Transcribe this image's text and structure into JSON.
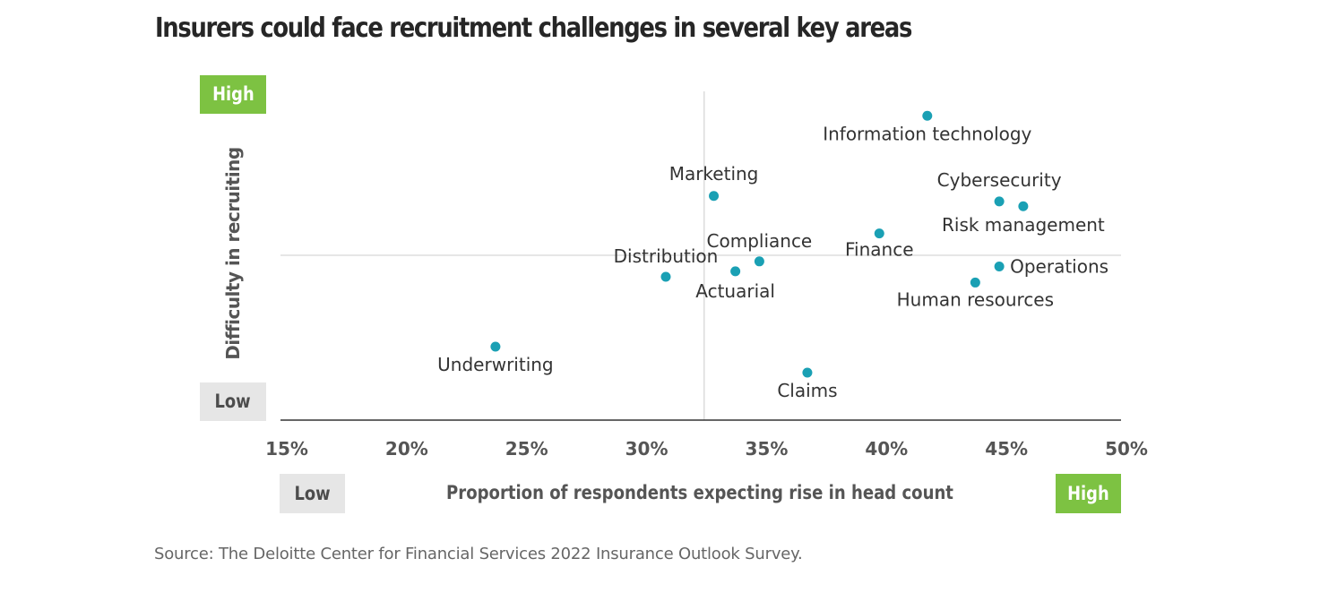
{
  "chart_data": {
    "type": "scatter",
    "title": "Insurers could face recruitment challenges in several key areas",
    "xlabel": "Proportion of respondents expecting rise in head count",
    "ylabel": "Difficulty in recruiting",
    "x_low_label": "Low",
    "x_high_label": "High",
    "y_low_label": "Low",
    "y_high_label": "High",
    "xlim": [
      15,
      50
    ],
    "ylim": [
      0,
      100
    ],
    "x_ticks": [
      15,
      20,
      25,
      30,
      35,
      40,
      45,
      50
    ],
    "x_tick_labels": [
      "15%",
      "20%",
      "25%",
      "30%",
      "35%",
      "40%",
      "45%",
      "50%"
    ],
    "x_divider": 32.4,
    "y_divider": 50,
    "grid": false,
    "point_color": "#1aa0b4",
    "points": [
      {
        "label": "Information technology",
        "x": 41.7,
        "y": 93.5
      },
      {
        "label": "Marketing",
        "x": 32.8,
        "y": 68.5
      },
      {
        "label": "Cybersecurity",
        "x": 44.7,
        "y": 66.8
      },
      {
        "label": "Risk management",
        "x": 45.7,
        "y": 65.3
      },
      {
        "label": "Finance",
        "x": 39.7,
        "y": 56.8
      },
      {
        "label": "Compliance",
        "x": 34.7,
        "y": 48.1
      },
      {
        "label": "Actuarial",
        "x": 33.7,
        "y": 45.0
      },
      {
        "label": "Distribution",
        "x": 30.8,
        "y": 43.3
      },
      {
        "label": "Operations",
        "x": 44.7,
        "y": 46.5
      },
      {
        "label": "Human resources",
        "x": 43.7,
        "y": 41.5
      },
      {
        "label": "Underwriting",
        "x": 23.7,
        "y": 21.5
      },
      {
        "label": "Claims",
        "x": 36.7,
        "y": 13.4
      }
    ]
  },
  "source": "Source: The Deloitte Center for Financial Services 2022 Insurance Outlook Survey."
}
